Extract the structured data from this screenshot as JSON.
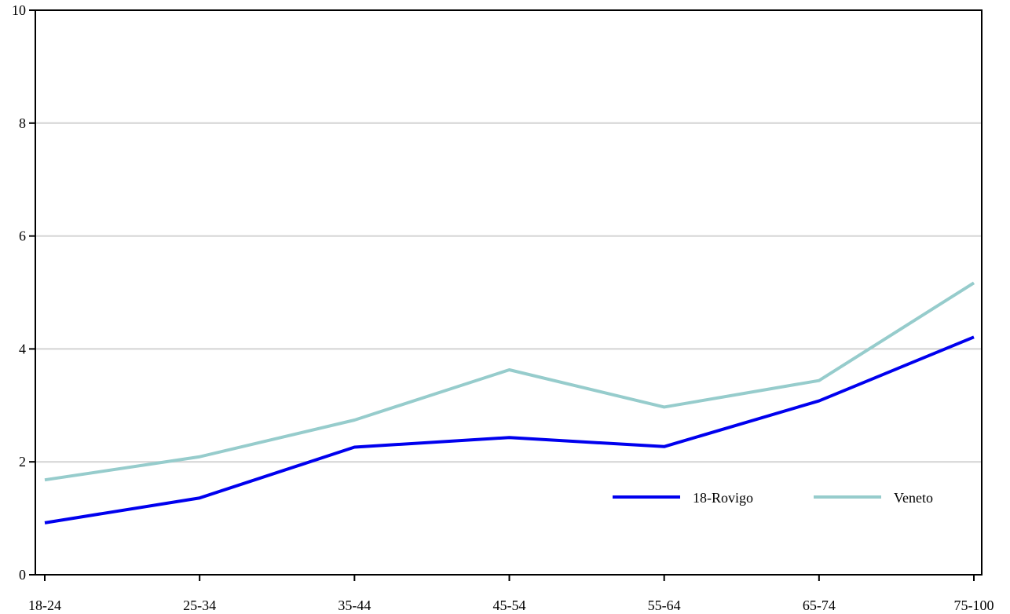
{
  "chart_data": {
    "type": "line",
    "categories": [
      "18-24",
      "25-34",
      "35-44",
      "45-54",
      "55-64",
      "65-74",
      "75-100"
    ],
    "series": [
      {
        "name": "18-Rovigo",
        "color": "#0000ee",
        "values": [
          0.92,
          1.36,
          2.26,
          2.43,
          2.27,
          3.08,
          4.21
        ]
      },
      {
        "name": "Veneto",
        "color": "#96cccc",
        "values": [
          1.68,
          2.09,
          2.74,
          3.63,
          2.97,
          3.44,
          5.17
        ]
      }
    ],
    "ylim": [
      0,
      10
    ],
    "yticks": [
      "0",
      "2",
      "4",
      "6",
      "8",
      "10"
    ],
    "grid": true,
    "legend_position": "bottom-right",
    "title": "",
    "xlabel": "",
    "ylabel": ""
  }
}
